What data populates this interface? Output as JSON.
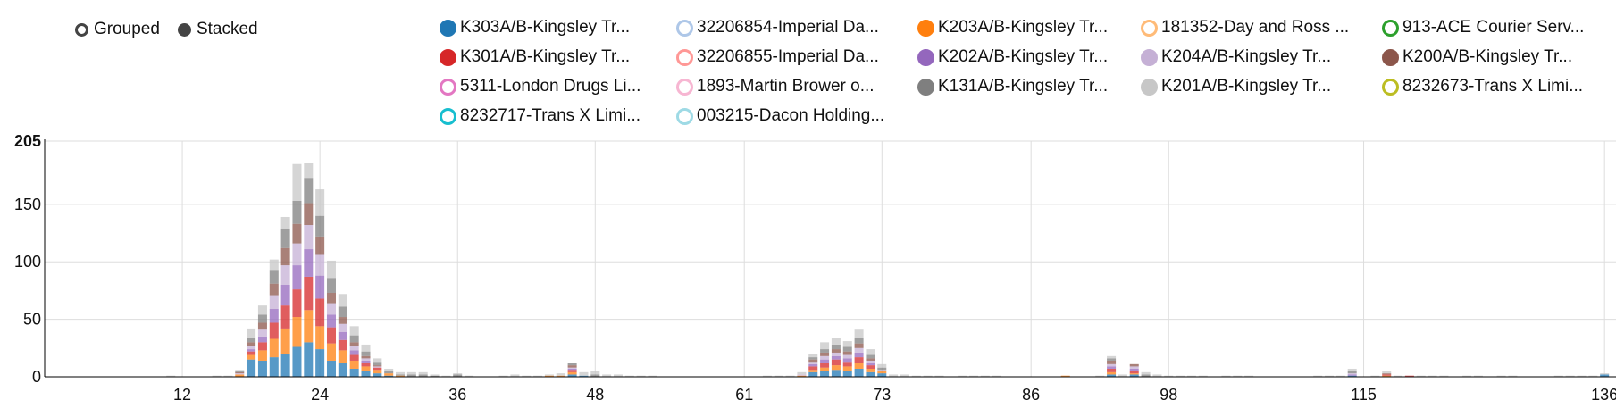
{
  "modes": [
    {
      "label": "Grouped",
      "active": false
    },
    {
      "label": "Stacked",
      "active": true
    }
  ],
  "legend": [
    {
      "label": "K303A/B-Kingsley Tr...",
      "color": "#1f77b4",
      "filled": true
    },
    {
      "label": "32206854-Imperial Da...",
      "color": "#aec7e8",
      "filled": false
    },
    {
      "label": "K203A/B-Kingsley Tr...",
      "color": "#ff7f0e",
      "filled": true
    },
    {
      "label": "181352-Day and Ross ...",
      "color": "#ffbb78",
      "filled": false
    },
    {
      "label": "913-ACE Courier Serv...",
      "color": "#2ca02c",
      "filled": false
    },
    {
      "label": "K301A/B-Kingsley Tr...",
      "color": "#d62728",
      "filled": true
    },
    {
      "label": "32206855-Imperial Da...",
      "color": "#ff9896",
      "filled": false
    },
    {
      "label": "K202A/B-Kingsley Tr...",
      "color": "#9467bd",
      "filled": true
    },
    {
      "label": "K204A/B-Kingsley Tr...",
      "color": "#c5b0d5",
      "filled": true
    },
    {
      "label": "K200A/B-Kingsley Tr...",
      "color": "#8c564b",
      "filled": true
    },
    {
      "label": "5311-London Drugs Li...",
      "color": "#e377c2",
      "filled": false
    },
    {
      "label": "1893-Martin Brower o...",
      "color": "#f7b6d2",
      "filled": false
    },
    {
      "label": "K131A/B-Kingsley Tr...",
      "color": "#7f7f7f",
      "filled": true
    },
    {
      "label": "K201A/B-Kingsley Tr...",
      "color": "#c7c7c7",
      "filled": true
    },
    {
      "label": "8232673-Trans X Limi...",
      "color": "#bcbd22",
      "filled": false
    },
    {
      "label": "8232717-Trans X Limi...",
      "color": "#17becf",
      "filled": false
    },
    {
      "label": "003215-Dacon Holding...",
      "color": "#9edae5",
      "filled": false
    }
  ],
  "chart_data": {
    "type": "bar",
    "stacked": true,
    "xlim": [
      0,
      137
    ],
    "ylim": [
      0,
      205
    ],
    "x_ticks": [
      12,
      24,
      36,
      48,
      61,
      73,
      86,
      98,
      115,
      136
    ],
    "y_ticks": [
      0,
      50,
      100,
      150,
      205
    ],
    "grid": true,
    "legend_position": "top",
    "series": [
      {
        "name": "K303A/B-Kingsley Tr...",
        "color": "#1f77b4",
        "points": [
          [
            18,
            15
          ],
          [
            19,
            14
          ],
          [
            20,
            17
          ],
          [
            21,
            20
          ],
          [
            22,
            26
          ],
          [
            23,
            30
          ],
          [
            24,
            24
          ],
          [
            25,
            14
          ],
          [
            26,
            12
          ],
          [
            27,
            7
          ],
          [
            28,
            5
          ],
          [
            29,
            3
          ],
          [
            30,
            1
          ],
          [
            46,
            2
          ],
          [
            47,
            1
          ],
          [
            67,
            4
          ],
          [
            68,
            5
          ],
          [
            69,
            6
          ],
          [
            70,
            5
          ],
          [
            71,
            7
          ],
          [
            72,
            4
          ],
          [
            73,
            3
          ],
          [
            93,
            2
          ],
          [
            95,
            2
          ],
          [
            114,
            1
          ],
          [
            136,
            2
          ]
        ]
      },
      {
        "name": "K203A/B-Kingsley Tr...",
        "color": "#ff7f0e",
        "points": [
          [
            17,
            2
          ],
          [
            18,
            4
          ],
          [
            19,
            9
          ],
          [
            20,
            16
          ],
          [
            21,
            22
          ],
          [
            22,
            26
          ],
          [
            23,
            28
          ],
          [
            24,
            20
          ],
          [
            25,
            15
          ],
          [
            26,
            11
          ],
          [
            27,
            7
          ],
          [
            28,
            4
          ],
          [
            29,
            3
          ],
          [
            30,
            2
          ],
          [
            31,
            1
          ],
          [
            44,
            1
          ],
          [
            45,
            1
          ],
          [
            46,
            2
          ],
          [
            66,
            1
          ],
          [
            67,
            2
          ],
          [
            68,
            3
          ],
          [
            69,
            4
          ],
          [
            70,
            4
          ],
          [
            71,
            5
          ],
          [
            72,
            3
          ],
          [
            73,
            2
          ],
          [
            89,
            1
          ],
          [
            93,
            2
          ],
          [
            95,
            1
          ],
          [
            117,
            1
          ]
        ]
      },
      {
        "name": "K301A/B-Kingsley Tr...",
        "color": "#d62728",
        "points": [
          [
            18,
            3
          ],
          [
            19,
            7
          ],
          [
            20,
            14
          ],
          [
            21,
            20
          ],
          [
            22,
            24
          ],
          [
            23,
            29
          ],
          [
            24,
            24
          ],
          [
            25,
            14
          ],
          [
            26,
            9
          ],
          [
            27,
            5
          ],
          [
            28,
            3
          ],
          [
            29,
            2
          ],
          [
            46,
            2
          ],
          [
            67,
            3
          ],
          [
            68,
            4
          ],
          [
            69,
            5
          ],
          [
            70,
            4
          ],
          [
            71,
            5
          ],
          [
            72,
            3
          ],
          [
            93,
            3
          ],
          [
            95,
            2
          ],
          [
            117,
            1
          ],
          [
            119,
            1
          ]
        ]
      },
      {
        "name": "K202A/B-Kingsley Tr...",
        "color": "#9467bd",
        "points": [
          [
            18,
            2
          ],
          [
            19,
            5
          ],
          [
            20,
            12
          ],
          [
            21,
            18
          ],
          [
            22,
            21
          ],
          [
            23,
            24
          ],
          [
            24,
            20
          ],
          [
            25,
            11
          ],
          [
            26,
            7
          ],
          [
            27,
            4
          ],
          [
            28,
            2
          ],
          [
            46,
            1
          ],
          [
            67,
            2
          ],
          [
            68,
            3
          ],
          [
            69,
            3
          ],
          [
            70,
            3
          ],
          [
            71,
            4
          ],
          [
            72,
            2
          ],
          [
            93,
            2
          ],
          [
            95,
            2
          ],
          [
            114,
            1
          ]
        ]
      },
      {
        "name": "K204A/B-Kingsley Tr...",
        "color": "#c5b0d5",
        "points": [
          [
            17,
            1
          ],
          [
            18,
            3
          ],
          [
            19,
            6
          ],
          [
            20,
            12
          ],
          [
            21,
            17
          ],
          [
            22,
            19
          ],
          [
            23,
            21
          ],
          [
            24,
            18
          ],
          [
            25,
            10
          ],
          [
            26,
            7
          ],
          [
            27,
            4
          ],
          [
            28,
            2
          ],
          [
            29,
            1
          ],
          [
            46,
            1
          ],
          [
            66,
            1
          ],
          [
            67,
            2
          ],
          [
            68,
            3
          ],
          [
            69,
            3
          ],
          [
            70,
            3
          ],
          [
            71,
            4
          ],
          [
            72,
            2
          ],
          [
            73,
            1
          ],
          [
            93,
            2
          ],
          [
            95,
            2
          ],
          [
            114,
            1
          ]
        ]
      },
      {
        "name": "K200A/B-Kingsley Tr...",
        "color": "#8c564b",
        "points": [
          [
            17,
            1
          ],
          [
            18,
            3
          ],
          [
            19,
            6
          ],
          [
            20,
            10
          ],
          [
            21,
            15
          ],
          [
            22,
            17
          ],
          [
            23,
            19
          ],
          [
            24,
            16
          ],
          [
            25,
            9
          ],
          [
            26,
            6
          ],
          [
            27,
            3
          ],
          [
            28,
            2
          ],
          [
            29,
            1
          ],
          [
            46,
            2
          ],
          [
            67,
            2
          ],
          [
            68,
            3
          ],
          [
            69,
            3
          ],
          [
            70,
            3
          ],
          [
            71,
            4
          ],
          [
            72,
            2
          ],
          [
            93,
            3
          ],
          [
            95,
            2
          ],
          [
            117,
            1
          ]
        ]
      },
      {
        "name": "K131A/B-Kingsley Tr...",
        "color": "#7f7f7f",
        "points": [
          [
            17,
            1
          ],
          [
            18,
            4
          ],
          [
            19,
            7
          ],
          [
            20,
            12
          ],
          [
            21,
            17
          ],
          [
            22,
            20
          ],
          [
            23,
            22
          ],
          [
            24,
            18
          ],
          [
            25,
            13
          ],
          [
            26,
            9
          ],
          [
            27,
            6
          ],
          [
            28,
            4
          ],
          [
            29,
            3
          ],
          [
            30,
            2
          ],
          [
            31,
            1
          ],
          [
            32,
            2
          ],
          [
            33,
            2
          ],
          [
            34,
            1
          ],
          [
            36,
            2
          ],
          [
            46,
            2
          ],
          [
            48,
            2
          ],
          [
            67,
            2
          ],
          [
            68,
            3
          ],
          [
            69,
            4
          ],
          [
            70,
            4
          ],
          [
            71,
            5
          ],
          [
            72,
            3
          ],
          [
            73,
            2
          ],
          [
            93,
            2
          ],
          [
            96,
            2
          ],
          [
            114,
            2
          ]
        ]
      },
      {
        "name": "K201A/B-Kingsley Tr...",
        "color": "#c7c7c7",
        "points": [
          [
            11,
            1
          ],
          [
            15,
            1
          ],
          [
            16,
            1
          ],
          [
            17,
            1
          ],
          [
            18,
            8
          ],
          [
            19,
            8
          ],
          [
            20,
            9
          ],
          [
            21,
            10
          ],
          [
            22,
            32
          ],
          [
            23,
            13
          ],
          [
            24,
            23
          ],
          [
            25,
            15
          ],
          [
            26,
            11
          ],
          [
            27,
            8
          ],
          [
            28,
            6
          ],
          [
            29,
            3
          ],
          [
            30,
            2
          ],
          [
            31,
            2
          ],
          [
            32,
            2
          ],
          [
            33,
            2
          ],
          [
            34,
            1
          ],
          [
            35,
            1
          ],
          [
            36,
            1
          ],
          [
            37,
            1
          ],
          [
            40,
            1
          ],
          [
            41,
            2
          ],
          [
            42,
            1
          ],
          [
            43,
            1
          ],
          [
            44,
            1
          ],
          [
            45,
            2
          ],
          [
            47,
            3
          ],
          [
            48,
            3
          ],
          [
            49,
            2
          ],
          [
            50,
            2
          ],
          [
            51,
            1
          ],
          [
            52,
            1
          ],
          [
            53,
            1
          ],
          [
            63,
            1
          ],
          [
            64,
            1
          ],
          [
            65,
            1
          ],
          [
            66,
            2
          ],
          [
            67,
            3
          ],
          [
            68,
            6
          ],
          [
            69,
            6
          ],
          [
            70,
            5
          ],
          [
            71,
            7
          ],
          [
            72,
            5
          ],
          [
            73,
            3
          ],
          [
            74,
            2
          ],
          [
            75,
            2
          ],
          [
            76,
            1
          ],
          [
            77,
            1
          ],
          [
            78,
            1
          ],
          [
            80,
            1
          ],
          [
            81,
            1
          ],
          [
            82,
            1
          ],
          [
            83,
            1
          ],
          [
            92,
            1
          ],
          [
            93,
            2
          ],
          [
            94,
            2
          ],
          [
            96,
            2
          ],
          [
            97,
            2
          ],
          [
            98,
            1
          ],
          [
            99,
            1
          ],
          [
            100,
            1
          ],
          [
            101,
            1
          ],
          [
            103,
            1
          ],
          [
            104,
            1
          ],
          [
            105,
            1
          ],
          [
            111,
            1
          ],
          [
            112,
            1
          ],
          [
            113,
            1
          ],
          [
            114,
            2
          ],
          [
            116,
            1
          ],
          [
            117,
            2
          ],
          [
            118,
            1
          ],
          [
            120,
            1
          ],
          [
            121,
            1
          ],
          [
            122,
            1
          ],
          [
            124,
            1
          ],
          [
            125,
            1
          ],
          [
            127,
            1
          ],
          [
            128,
            1
          ],
          [
            132,
            1
          ],
          [
            133,
            1
          ],
          [
            134,
            1
          ],
          [
            135,
            1
          ],
          [
            136,
            1
          ]
        ]
      }
    ]
  }
}
